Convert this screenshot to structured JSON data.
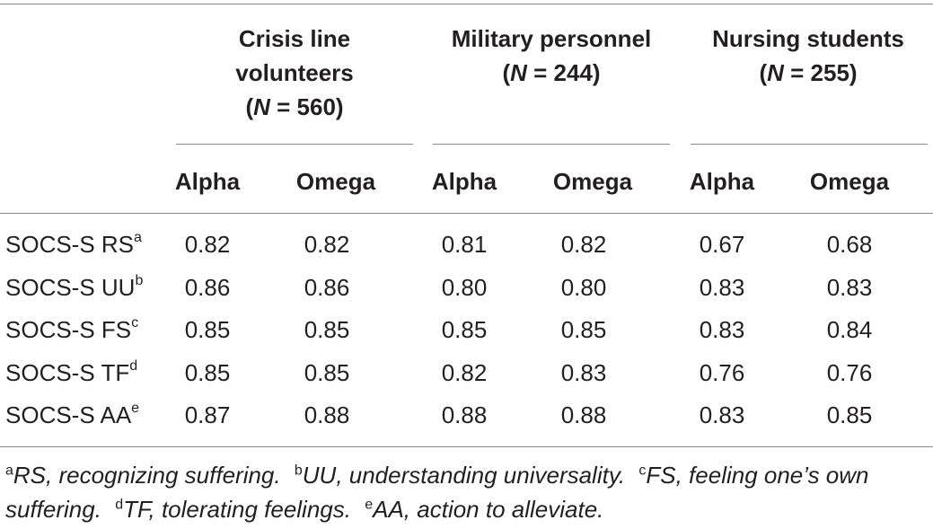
{
  "table": {
    "groups": [
      {
        "line1": "Crisis line",
        "line2": "volunteers",
        "n_label": "N",
        "n_rest": " = 560)"
      },
      {
        "line1": "Military personnel",
        "line2": "",
        "n_label": "N",
        "n_rest": " = 244)"
      },
      {
        "line1": "Nursing students",
        "line2": "",
        "n_label": "N",
        "n_rest": " = 255)"
      }
    ],
    "subheaders": [
      "Alpha",
      "Omega",
      "Alpha",
      "Omega",
      "Alpha",
      "Omega"
    ],
    "rows": [
      {
        "label": "SOCS-S RS",
        "sup": "a",
        "values": [
          "0.82",
          "0.82",
          "0.81",
          "0.82",
          "0.67",
          "0.68"
        ]
      },
      {
        "label": "SOCS-S UU",
        "sup": "b",
        "values": [
          "0.86",
          "0.86",
          "0.80",
          "0.80",
          "0.83",
          "0.83"
        ]
      },
      {
        "label": "SOCS-S FS",
        "sup": "c",
        "values": [
          "0.85",
          "0.85",
          "0.85",
          "0.85",
          "0.83",
          "0.84"
        ]
      },
      {
        "label": "SOCS-S TF",
        "sup": "d",
        "values": [
          "0.85",
          "0.85",
          "0.82",
          "0.83",
          "0.76",
          "0.76"
        ]
      },
      {
        "label": "SOCS-S AA",
        "sup": "e",
        "values": [
          "0.87",
          "0.88",
          "0.88",
          "0.88",
          "0.83",
          "0.85"
        ]
      }
    ]
  },
  "footnotes": [
    {
      "mark": "a",
      "text": "RS, recognizing suffering."
    },
    {
      "mark": "b",
      "text": "UU, understanding universality."
    },
    {
      "mark": "c",
      "text": "FS, feeling one’s own suffering."
    },
    {
      "mark": "d",
      "text": "TF, tolerating feelings."
    },
    {
      "mark": "e",
      "text": "AA, action to alleviate."
    }
  ]
}
